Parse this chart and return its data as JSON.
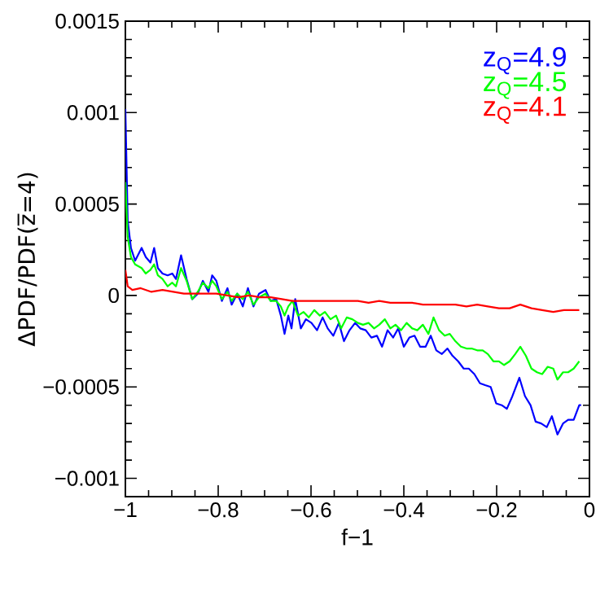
{
  "chart_data": {
    "type": "line",
    "xlabel": "f−1",
    "ylabel": "ΔPDF/PDF(z̅=4)",
    "xlim": [
      -1,
      0
    ],
    "ylim": [
      -0.0011,
      0.0015
    ],
    "xticks": [
      {
        "value": -1,
        "label": "−1"
      },
      {
        "value": -0.8,
        "label": "−0.8"
      },
      {
        "value": -0.6,
        "label": "−0.6"
      },
      {
        "value": -0.4,
        "label": "−0.4"
      },
      {
        "value": -0.2,
        "label": "−0.2"
      },
      0
    ],
    "yticks": [
      {
        "value": -0.001,
        "label": "−0.001"
      },
      {
        "value": -0.0005,
        "label": "−0.0005"
      },
      0,
      0.0005,
      0.001,
      0.0015
    ],
    "legend": "top right",
    "grid": false,
    "marker": "none",
    "line_style": "solid",
    "series": [
      {
        "name": "z$_{Q}$=4.9",
        "color": "#0000ff",
        "x": [
          -1.0,
          -0.995,
          -0.988,
          -0.979,
          -0.965,
          -0.956,
          -0.946,
          -0.938,
          -0.93,
          -0.92,
          -0.909,
          -0.899,
          -0.891,
          -0.88,
          -0.868,
          -0.856,
          -0.844,
          -0.833,
          -0.821,
          -0.813,
          -0.804,
          -0.792,
          -0.78,
          -0.771,
          -0.759,
          -0.747,
          -0.736,
          -0.724,
          -0.712,
          -0.698,
          -0.687,
          -0.675,
          -0.665,
          -0.657,
          -0.649,
          -0.642,
          -0.634,
          -0.622,
          -0.611,
          -0.599,
          -0.587,
          -0.575,
          -0.564,
          -0.552,
          -0.54,
          -0.529,
          -0.517,
          -0.505,
          -0.494,
          -0.482,
          -0.47,
          -0.458,
          -0.447,
          -0.435,
          -0.423,
          -0.412,
          -0.4,
          -0.388,
          -0.377,
          -0.365,
          -0.353,
          -0.342,
          -0.33,
          -0.318,
          -0.306,
          -0.295,
          -0.283,
          -0.271,
          -0.26,
          -0.248,
          -0.236,
          -0.225,
          -0.213,
          -0.201,
          -0.189,
          -0.178,
          -0.166,
          -0.151,
          -0.139,
          -0.127,
          -0.116,
          -0.104,
          -0.092,
          -0.081,
          -0.069,
          -0.057,
          -0.046,
          -0.034,
          -0.022,
          -0.018
        ],
        "values": [
          0.00102,
          0.00041,
          0.00026,
          0.00019,
          0.00026,
          0.00021,
          0.00018,
          0.00026,
          0.00015,
          0.00012,
          0.00011,
          0.00012,
          9e-05,
          0.00022,
          9e-05,
          -2e-05,
          1e-05,
          8e-05,
          2e-05,
          0.00011,
          8e-05,
          -3e-05,
          4e-05,
          -5e-05,
          1e-05,
          -6e-05,
          4e-05,
          -6e-05,
          1e-05,
          3e-05,
          -3e-05,
          -2e-05,
          -0.00011,
          -0.00021,
          -0.00011,
          -0.00018,
          -2e-05,
          -0.00018,
          -0.00013,
          -0.00015,
          -0.00019,
          -0.00012,
          -0.00018,
          -0.00022,
          -0.00015,
          -0.00025,
          -0.00019,
          -0.00015,
          -0.00018,
          -0.00019,
          -0.00023,
          -0.00022,
          -0.00028,
          -0.00019,
          -0.00023,
          -0.00018,
          -0.00028,
          -0.00023,
          -0.00022,
          -0.00028,
          -0.00028,
          -0.00022,
          -0.0003,
          -0.00032,
          -0.00029,
          -0.00033,
          -0.00036,
          -0.0004,
          -0.0004,
          -0.00043,
          -0.00048,
          -0.00049,
          -0.0005,
          -0.00059,
          -0.0006,
          -0.00062,
          -0.00055,
          -0.00045,
          -0.00055,
          -0.0006,
          -0.00069,
          -0.0007,
          -0.00072,
          -0.00066,
          -0.00076,
          -0.0007,
          -0.00068,
          -0.00068,
          -0.0006,
          -0.0006
        ]
      },
      {
        "name": "z$_{Q}$=4.5",
        "color": "#00ff00",
        "x": [
          -1.0,
          -0.995,
          -0.988,
          -0.979,
          -0.965,
          -0.956,
          -0.946,
          -0.938,
          -0.93,
          -0.92,
          -0.909,
          -0.899,
          -0.891,
          -0.88,
          -0.868,
          -0.856,
          -0.844,
          -0.833,
          -0.821,
          -0.813,
          -0.804,
          -0.792,
          -0.78,
          -0.771,
          -0.759,
          -0.747,
          -0.736,
          -0.724,
          -0.712,
          -0.698,
          -0.687,
          -0.675,
          -0.665,
          -0.657,
          -0.649,
          -0.64,
          -0.628,
          -0.616,
          -0.605,
          -0.593,
          -0.581,
          -0.57,
          -0.558,
          -0.546,
          -0.535,
          -0.523,
          -0.511,
          -0.499,
          -0.488,
          -0.476,
          -0.464,
          -0.453,
          -0.441,
          -0.429,
          -0.418,
          -0.406,
          -0.394,
          -0.382,
          -0.371,
          -0.359,
          -0.347,
          -0.336,
          -0.324,
          -0.312,
          -0.301,
          -0.289,
          -0.277,
          -0.265,
          -0.254,
          -0.242,
          -0.23,
          -0.219,
          -0.207,
          -0.195,
          -0.184,
          -0.172,
          -0.16,
          -0.149,
          -0.137,
          -0.125,
          -0.113,
          -0.102,
          -0.09,
          -0.078,
          -0.069,
          -0.057,
          -0.046,
          -0.034,
          -0.022
        ],
        "values": [
          0.00062,
          0.00032,
          0.00021,
          0.00017,
          0.00015,
          0.00012,
          0.00014,
          0.00017,
          0.00011,
          9e-05,
          5e-05,
          7e-05,
          5e-05,
          0.00015,
          8e-05,
          -2e-05,
          2e-05,
          7e-05,
          4e-05,
          8e-05,
          5e-05,
          -2e-05,
          2e-05,
          -3e-05,
          1e-05,
          -2e-05,
          2e-05,
          -5e-05,
          -1e-05,
          1e-05,
          -3e-05,
          -3e-05,
          -6e-05,
          -0.00011,
          -6e-05,
          -3e-05,
          -0.00011,
          -9e-05,
          -0.00012,
          -8e-05,
          -0.00011,
          -9e-05,
          -0.00013,
          -0.00011,
          -0.00018,
          -0.00012,
          -0.00013,
          -0.00015,
          -0.00016,
          -0.00015,
          -0.00018,
          -0.00016,
          -0.00013,
          -0.00018,
          -0.00016,
          -0.00019,
          -0.00015,
          -0.00018,
          -0.00019,
          -0.00016,
          -0.00021,
          -0.00012,
          -0.00019,
          -0.00022,
          -0.00021,
          -0.00025,
          -0.00028,
          -0.00029,
          -0.00029,
          -0.0003,
          -0.0003,
          -0.00032,
          -0.00036,
          -0.00036,
          -0.00038,
          -0.00036,
          -0.00032,
          -0.00028,
          -0.00033,
          -0.0004,
          -0.00042,
          -0.00043,
          -0.00039,
          -0.0004,
          -0.00046,
          -0.00042,
          -0.00042,
          -0.0004,
          -0.00036
        ]
      },
      {
        "name": "z$_{Q}$=4.1",
        "color": "#ff0000",
        "x": [
          -1.0,
          -0.995,
          -0.985,
          -0.967,
          -0.944,
          -0.92,
          -0.897,
          -0.874,
          -0.85,
          -0.827,
          -0.804,
          -0.78,
          -0.757,
          -0.733,
          -0.71,
          -0.687,
          -0.663,
          -0.64,
          -0.616,
          -0.593,
          -0.57,
          -0.546,
          -0.523,
          -0.499,
          -0.476,
          -0.453,
          -0.429,
          -0.406,
          -0.382,
          -0.359,
          -0.336,
          -0.312,
          -0.289,
          -0.265,
          -0.242,
          -0.219,
          -0.195,
          -0.172,
          -0.149,
          -0.125,
          -0.102,
          -0.078,
          -0.055,
          -0.032,
          -0.022
        ],
        "values": [
          0.00014,
          5e-05,
          3e-05,
          4e-05,
          2e-05,
          3e-05,
          2e-05,
          1e-05,
          1e-05,
          1e-05,
          1e-05,
          0,
          -1e-05,
          0,
          -1e-05,
          -1e-05,
          -2e-05,
          -3e-05,
          -3e-05,
          -3e-05,
          -3e-05,
          -3e-05,
          -3e-05,
          -3e-05,
          -4e-05,
          -3e-05,
          -4e-05,
          -4e-05,
          -4e-05,
          -5e-05,
          -5e-05,
          -5e-05,
          -5e-05,
          -6e-05,
          -5e-05,
          -6e-05,
          -7e-05,
          -7e-05,
          -5e-05,
          -7e-05,
          -8e-05,
          -9e-05,
          -8e-05,
          -8e-05,
          -8e-05
        ]
      }
    ]
  }
}
